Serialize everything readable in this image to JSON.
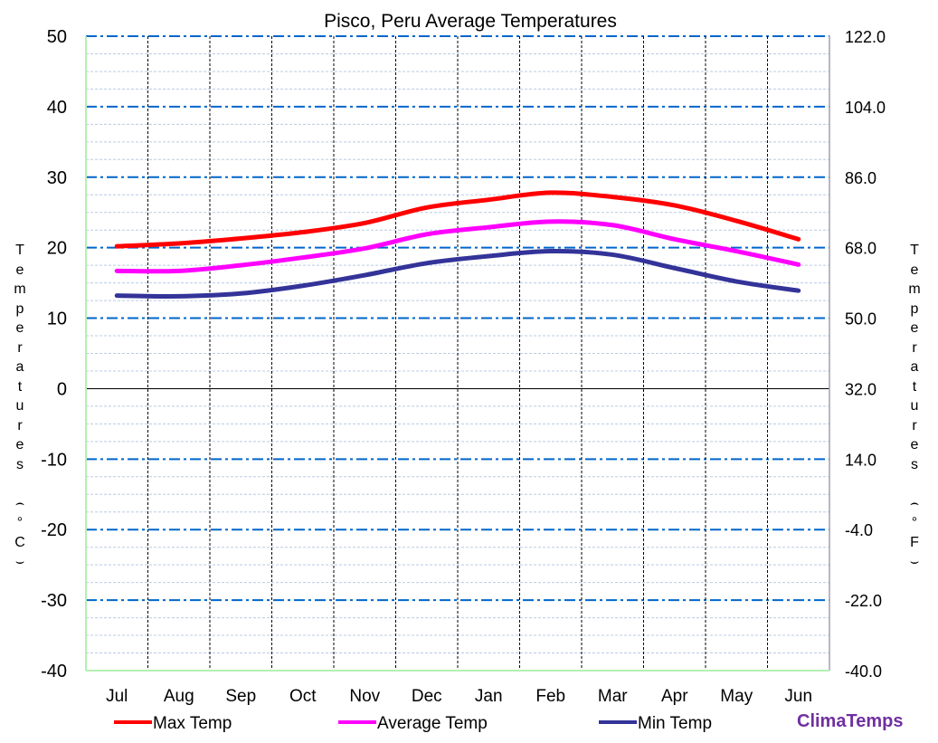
{
  "chart_data": {
    "type": "line",
    "title": "Pisco, Peru Average Temperatures",
    "categories": [
      "Jul",
      "Aug",
      "Sep",
      "Oct",
      "Nov",
      "Dec",
      "Jan",
      "Feb",
      "Mar",
      "Apr",
      "May",
      "Jun"
    ],
    "series": [
      {
        "name": "Max Temp",
        "color": "#ff0000",
        "values": [
          20.2,
          20.6,
          21.3,
          22.2,
          23.5,
          25.7,
          26.8,
          27.8,
          27.2,
          26.0,
          23.8,
          21.2
        ]
      },
      {
        "name": "Average Temp",
        "color": "#ff00ff",
        "values": [
          16.7,
          16.7,
          17.5,
          18.6,
          19.9,
          21.9,
          22.9,
          23.7,
          23.2,
          21.2,
          19.5,
          17.6
        ]
      },
      {
        "name": "Min Temp",
        "color": "#333399",
        "values": [
          13.2,
          13.1,
          13.5,
          14.6,
          16.1,
          17.8,
          18.8,
          19.5,
          19.0,
          17.1,
          15.2,
          13.9
        ]
      }
    ],
    "ylabel": "Temperatures (°C)",
    "ylabel_right": "Temperatures (°F)",
    "ylim": [
      -40,
      50
    ],
    "yticks": [
      "50",
      "40",
      "30",
      "20",
      "10",
      "0",
      "-10",
      "-20",
      "-30",
      "-40"
    ],
    "yticks_right": [
      "122.0",
      "104.0",
      "86.0",
      "68.0",
      "50.0",
      "32.0",
      "14.0",
      "-4.0",
      "-22.0",
      "-40.0"
    ],
    "ylim_right": [
      -40,
      122
    ],
    "grid": true,
    "legend": "bottom"
  },
  "brand": "ClimaTemps"
}
